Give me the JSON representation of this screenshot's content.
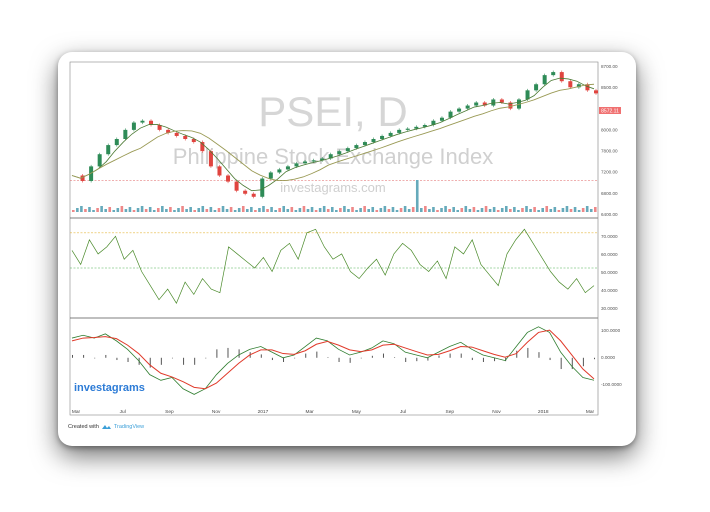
{
  "watermark": {
    "symbol": "PSEI, D",
    "name": "Philippine Stock Exchange Index",
    "site": "investagrams.com"
  },
  "logo": "investagrams",
  "footer": {
    "created_with": "Created with",
    "platform": "TradingView"
  },
  "last_price_label": "8572.11",
  "colors": {
    "candle_up": "#2e8b57",
    "candle_down": "#e0443f",
    "ma_short": "#4c7a34",
    "ma_long": "#9a9a55",
    "rsi_line": "#4a8a2a",
    "macd_line": "#2f7d2f",
    "signal_line": "#e03a2a",
    "logo_blue": "#2c7bd6",
    "price_tag": "#f07070"
  },
  "chart_data": [
    {
      "type": "candlestick",
      "panel": "price",
      "title": "PSEI, D",
      "y_ticks": [
        "8700.00",
        "8500.00",
        "8200.00",
        "8000.00",
        "7800.00",
        "7200.00",
        "6800.00",
        "6400.00"
      ],
      "y_range": [
        6350,
        8750
      ],
      "reference_line": 6870,
      "x_ticks": [
        "Mar",
        "Jul",
        "Sep",
        "Nov",
        "2017",
        "Mar",
        "May",
        "Jul",
        "Sep",
        "Nov",
        "2018",
        "Mar"
      ],
      "close_series": [
        6950,
        6860,
        7100,
        7300,
        7450,
        7550,
        7700,
        7820,
        7850,
        7780,
        7700,
        7650,
        7600,
        7550,
        7500,
        7350,
        7100,
        6950,
        6850,
        6700,
        6650,
        6600,
        6900,
        7000,
        7050,
        7100,
        7150,
        7180,
        7200,
        7230,
        7300,
        7350,
        7400,
        7450,
        7500,
        7550,
        7600,
        7650,
        7700,
        7720,
        7750,
        7780,
        7850,
        7900,
        8000,
        8050,
        8100,
        8150,
        8100,
        8200,
        8150,
        8050,
        8200,
        8350,
        8450,
        8600,
        8650,
        8500,
        8400,
        8450,
        8350,
        8300
      ],
      "volume_spike_index": 40
    },
    {
      "type": "line",
      "panel": "RSI",
      "y_ticks": [
        "70.0000",
        "60.0000",
        "50.0000",
        "40.0000",
        "30.0000"
      ],
      "y_range": [
        25,
        75
      ],
      "levels": [
        70,
        50
      ],
      "values": [
        60,
        52,
        66,
        58,
        62,
        68,
        55,
        60,
        48,
        40,
        32,
        38,
        30,
        42,
        35,
        44,
        38,
        36,
        62,
        58,
        54,
        50,
        56,
        48,
        60,
        64,
        55,
        70,
        72,
        62,
        55,
        58,
        48,
        44,
        50,
        55,
        46,
        58,
        64,
        60,
        52,
        48,
        54,
        44,
        62,
        58,
        66,
        52,
        46,
        40,
        58,
        66,
        72,
        64,
        56,
        48,
        42,
        38,
        44,
        36,
        40
      ]
    },
    {
      "type": "line",
      "panel": "MACD",
      "y_ticks": [
        "100.0000",
        "0.0000",
        "-100.0000"
      ],
      "y_range": [
        -150,
        120
      ],
      "series": [
        {
          "values": [
            70,
            80,
            70,
            85,
            60,
            30,
            -10,
            -60,
            -80,
            -70,
            -110,
            -130,
            -110,
            -60,
            -20,
            10,
            30,
            40,
            20,
            0,
            10,
            40,
            70,
            60,
            30,
            10,
            20,
            35,
            60,
            50,
            20,
            10,
            0,
            20,
            40,
            55,
            30,
            10,
            0,
            -10,
            40,
            90,
            110,
            90,
            20,
            -30,
            -70,
            -80
          ]
        },
        {
          "values": [
            60,
            70,
            72,
            75,
            68,
            45,
            15,
            -25,
            -55,
            -68,
            -85,
            -105,
            -110,
            -90,
            -55,
            -20,
            10,
            28,
            28,
            15,
            12,
            25,
            48,
            58,
            45,
            28,
            22,
            28,
            45,
            48,
            35,
            22,
            10,
            12,
            25,
            40,
            38,
            25,
            12,
            2,
            15,
            55,
            90,
            98,
            60,
            10,
            -40,
            -75
          ]
        }
      ]
    }
  ]
}
